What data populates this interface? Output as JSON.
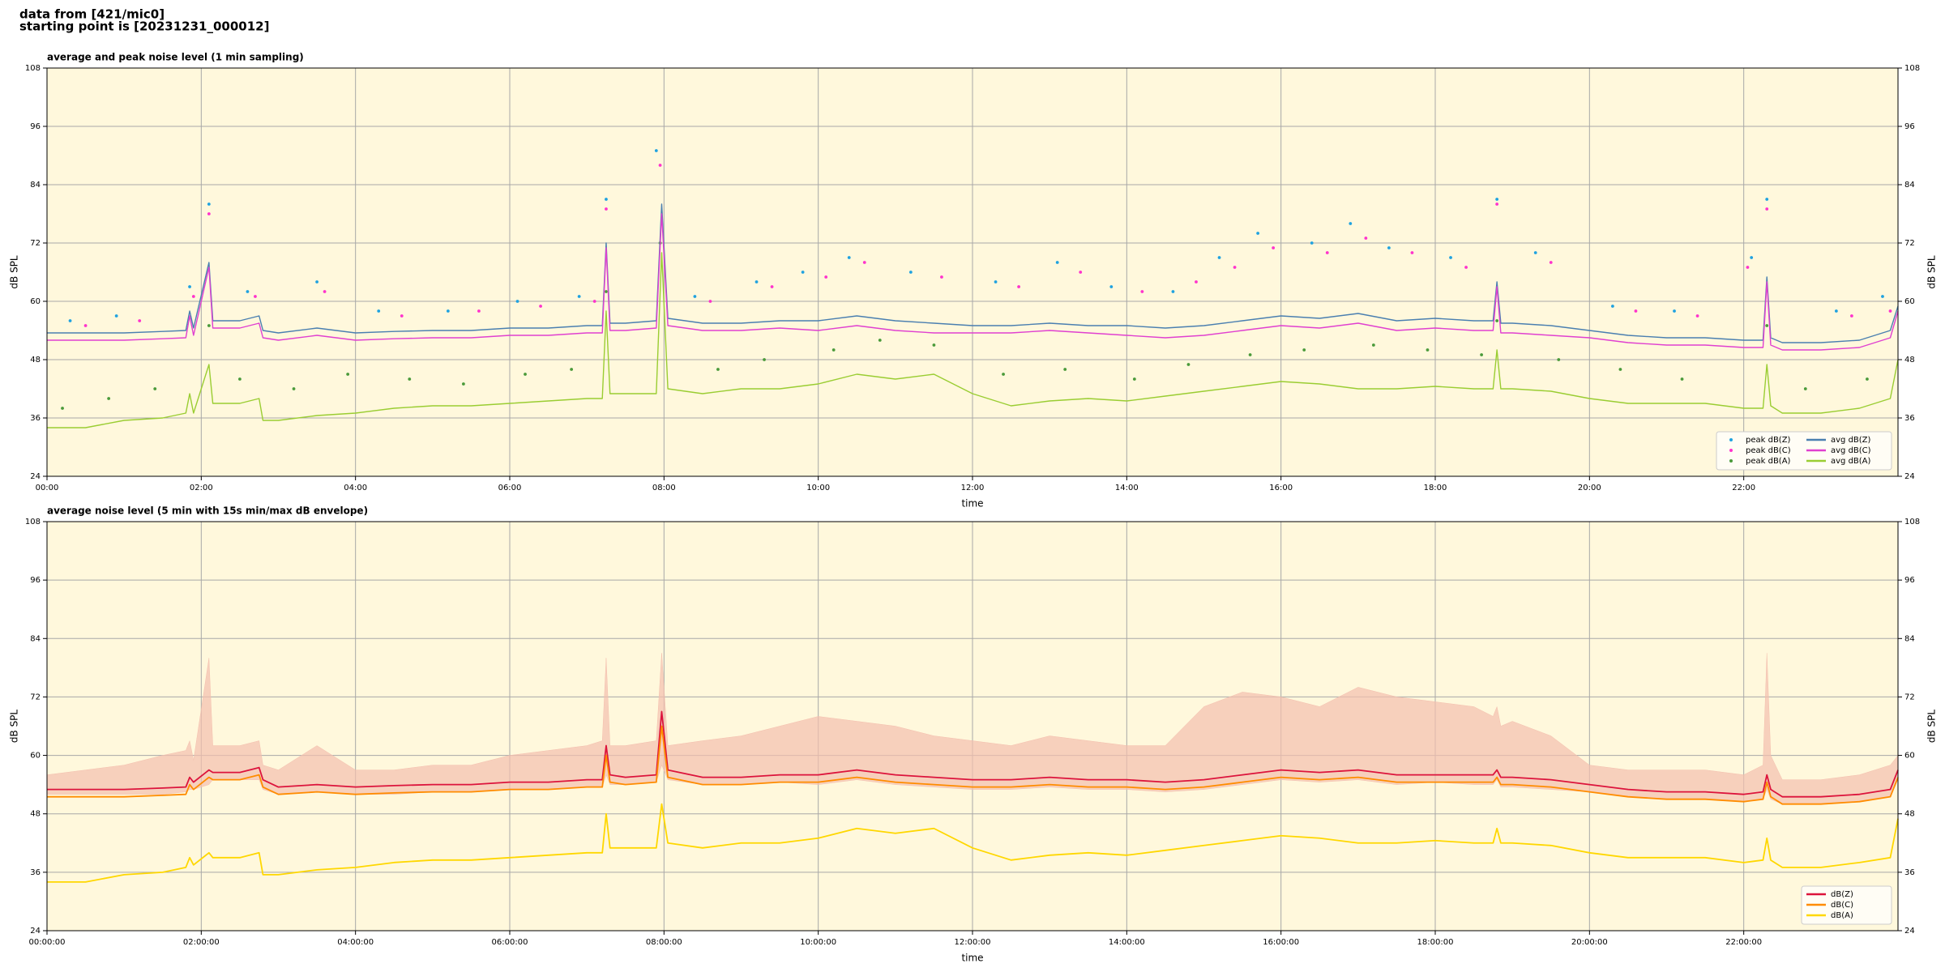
{
  "header": {
    "line1": "data from [421/mic0]",
    "line2": "starting point is [20231231_000012]"
  },
  "chart_data": [
    {
      "type": "line",
      "title": "average and peak noise level (1 min sampling)",
      "xlabel": "time",
      "ylabel": "dB SPL",
      "facecolor": "#fff8dc",
      "grid": true,
      "legend": "lower right",
      "xlim": [
        0,
        24
      ],
      "xticks": [
        {
          "value": 0,
          "label": "00:00"
        },
        {
          "value": 2,
          "label": "02:00"
        },
        {
          "value": 4,
          "label": "04:00"
        },
        {
          "value": 6,
          "label": "06:00"
        },
        {
          "value": 8,
          "label": "08:00"
        },
        {
          "value": 10,
          "label": "10:00"
        },
        {
          "value": 12,
          "label": "12:00"
        },
        {
          "value": 14,
          "label": "14:00"
        },
        {
          "value": 16,
          "label": "16:00"
        },
        {
          "value": 18,
          "label": "18:00"
        },
        {
          "value": 20,
          "label": "20:00"
        },
        {
          "value": 22,
          "label": "22:00"
        }
      ],
      "ylim": [
        24,
        108
      ],
      "yticks": [
        24,
        36,
        48,
        60,
        72,
        84,
        96,
        108
      ],
      "x": [
        0,
        0.5,
        1,
        1.5,
        1.8,
        1.85,
        1.9,
        2.1,
        2.15,
        2.5,
        2.75,
        2.8,
        3,
        3.5,
        4,
        4.5,
        5,
        5.5,
        6,
        6.5,
        7,
        7.2,
        7.25,
        7.3,
        7.5,
        7.9,
        7.97,
        8.05,
        8.5,
        9,
        9.5,
        10,
        10.5,
        11,
        11.5,
        12,
        12.5,
        13,
        13.5,
        14,
        14.5,
        15,
        15.5,
        16,
        16.5,
        17,
        17.5,
        18,
        18.5,
        18.75,
        18.8,
        18.85,
        19,
        19.5,
        20,
        20.5,
        21,
        21.5,
        22,
        22.25,
        22.3,
        22.35,
        22.5,
        23,
        23.5,
        23.9,
        24
      ],
      "series": [
        {
          "name": "peak dB(Z)",
          "type": "scatter",
          "color": "#1fa2e0",
          "x": [
            0.3,
            0.9,
            1.85,
            2.1,
            2.6,
            3.5,
            4.3,
            5.2,
            6.1,
            6.9,
            7.25,
            7.9,
            8.4,
            9.2,
            9.8,
            10.4,
            11.2,
            12.3,
            13.1,
            13.8,
            14.6,
            15.2,
            15.7,
            16.4,
            16.9,
            17.4,
            18.2,
            18.8,
            19.3,
            20.3,
            21.1,
            22.1,
            22.3,
            23.2,
            23.8
          ],
          "values": [
            56,
            57,
            63,
            80,
            62,
            64,
            58,
            58,
            60,
            61,
            81,
            91,
            61,
            64,
            66,
            69,
            66,
            64,
            68,
            63,
            62,
            69,
            74,
            72,
            76,
            71,
            69,
            81,
            70,
            59,
            58,
            69,
            81,
            58,
            61
          ]
        },
        {
          "name": "peak dB(C)",
          "type": "scatter",
          "color": "#ff33cc",
          "x": [
            0.5,
            1.2,
            1.9,
            2.1,
            2.7,
            3.6,
            4.6,
            5.6,
            6.4,
            7.1,
            7.25,
            7.95,
            8.6,
            9.4,
            10.1,
            10.6,
            11.6,
            12.6,
            13.4,
            14.2,
            14.9,
            15.4,
            15.9,
            16.6,
            17.1,
            17.7,
            18.4,
            18.8,
            19.5,
            20.6,
            21.4,
            22.05,
            22.3,
            23.4,
            23.9
          ],
          "values": [
            55,
            56,
            61,
            78,
            61,
            62,
            57,
            58,
            59,
            60,
            79,
            88,
            60,
            63,
            65,
            68,
            65,
            63,
            66,
            62,
            64,
            67,
            71,
            70,
            73,
            70,
            67,
            80,
            68,
            58,
            57,
            67,
            79,
            57,
            58
          ]
        },
        {
          "name": "peak dB(A)",
          "type": "scatter",
          "color": "#4a9a3a",
          "x": [
            0.2,
            0.8,
            1.4,
            2.1,
            2.5,
            3.2,
            3.9,
            4.7,
            5.4,
            6.2,
            6.8,
            7.25,
            7.95,
            8.7,
            9.3,
            10.2,
            10.8,
            11.5,
            12.4,
            13.2,
            14.1,
            14.8,
            15.6,
            16.3,
            17.2,
            17.9,
            18.6,
            18.8,
            19.6,
            20.4,
            21.2,
            22.3,
            22.8,
            23.6
          ],
          "values": [
            38,
            40,
            42,
            55,
            44,
            42,
            45,
            44,
            43,
            45,
            46,
            62,
            72,
            46,
            48,
            50,
            52,
            51,
            45,
            46,
            44,
            47,
            49,
            50,
            51,
            50,
            49,
            56,
            48,
            46,
            44,
            55,
            42,
            44
          ]
        },
        {
          "name": "avg dB(Z)",
          "color": "#4a7fb0",
          "values": [
            53.5,
            53.5,
            53.5,
            53.8,
            54,
            58,
            54.5,
            68,
            56,
            56,
            57,
            54,
            53.5,
            54.5,
            53.5,
            53.8,
            54,
            54,
            54.5,
            54.5,
            55,
            55,
            72,
            55.5,
            55.5,
            56,
            80,
            56.5,
            55.5,
            55.5,
            56,
            56,
            57,
            56,
            55.5,
            55,
            55,
            55.5,
            55,
            55,
            54.5,
            55,
            56,
            57,
            56.5,
            57.5,
            56,
            56.5,
            56,
            56,
            64,
            55.5,
            55.5,
            55,
            54,
            53,
            52.5,
            52.5,
            52,
            52,
            65,
            52.5,
            51.5,
            51.5,
            52,
            54,
            59
          ]
        },
        {
          "name": "avg dB(C)",
          "color": "#e040d0",
          "values": [
            52,
            52,
            52,
            52.3,
            52.5,
            57,
            53,
            67,
            54.5,
            54.5,
            55.5,
            52.5,
            52,
            53,
            52,
            52.3,
            52.5,
            52.5,
            53,
            53,
            53.5,
            53.5,
            71,
            54,
            54,
            54.5,
            78,
            55,
            54,
            54,
            54.5,
            54,
            55,
            54,
            53.5,
            53.5,
            53.5,
            54,
            53.5,
            53,
            52.5,
            53,
            54,
            55,
            54.5,
            55.5,
            54,
            54.5,
            54,
            54,
            63,
            53.5,
            53.5,
            53,
            52.5,
            51.5,
            51,
            51,
            50.5,
            50.5,
            64,
            51,
            50,
            50,
            50.5,
            52.5,
            58
          ]
        },
        {
          "name": "avg dB(A)",
          "color": "#9acd32",
          "values": [
            34,
            34,
            35.5,
            36,
            37,
            41,
            37,
            47,
            39,
            39,
            40,
            35.5,
            35.5,
            36.5,
            37,
            38,
            38.5,
            38.5,
            39,
            39.5,
            40,
            40,
            58,
            41,
            41,
            41,
            70,
            42,
            41,
            42,
            42,
            43,
            45,
            44,
            45,
            41,
            38.5,
            39.5,
            40,
            39.5,
            40.5,
            41.5,
            42.5,
            43.5,
            43,
            42,
            42,
            42.5,
            42,
            42,
            50,
            42,
            42,
            41.5,
            40,
            39,
            39,
            39,
            38,
            38,
            47,
            38.5,
            37,
            37,
            38,
            40,
            48
          ]
        }
      ]
    },
    {
      "type": "line",
      "title": "average noise level (5 min with 15s min/max dB envelope)",
      "xlabel": "time",
      "ylabel": "dB SPL",
      "facecolor": "#fff8dc",
      "grid": true,
      "legend": "lower right",
      "xlim": [
        0,
        24
      ],
      "xticks": [
        {
          "value": 0,
          "label": "00:00:00"
        },
        {
          "value": 2,
          "label": "02:00:00"
        },
        {
          "value": 4,
          "label": "04:00:00"
        },
        {
          "value": 6,
          "label": "06:00:00"
        },
        {
          "value": 8,
          "label": "08:00:00"
        },
        {
          "value": 10,
          "label": "10:00:00"
        },
        {
          "value": 12,
          "label": "12:00:00"
        },
        {
          "value": 14,
          "label": "14:00:00"
        },
        {
          "value": 16,
          "label": "16:00:00"
        },
        {
          "value": 18,
          "label": "18:00:00"
        },
        {
          "value": 20,
          "label": "20:00:00"
        },
        {
          "value": 22,
          "label": "22:00:00"
        }
      ],
      "ylim": [
        24,
        108
      ],
      "yticks": [
        24,
        36,
        48,
        60,
        72,
        84,
        96,
        108
      ],
      "x": [
        0,
        0.5,
        1,
        1.5,
        1.8,
        1.85,
        1.9,
        2.1,
        2.15,
        2.5,
        2.75,
        2.8,
        3,
        3.5,
        4,
        4.5,
        5,
        5.5,
        6,
        6.5,
        7,
        7.2,
        7.25,
        7.3,
        7.5,
        7.9,
        7.97,
        8.05,
        8.5,
        9,
        9.5,
        10,
        10.5,
        11,
        11.5,
        12,
        12.5,
        13,
        13.5,
        14,
        14.5,
        15,
        15.5,
        16,
        16.5,
        17,
        17.5,
        18,
        18.5,
        18.75,
        18.8,
        18.85,
        19,
        19.5,
        20,
        20.5,
        21,
        21.5,
        22,
        22.25,
        22.3,
        22.35,
        22.5,
        23,
        23.5,
        23.9,
        24
      ],
      "envelope": {
        "color": "#f4bfae",
        "upper": [
          56,
          57,
          58,
          60,
          61,
          63,
          59,
          80,
          62,
          62,
          63,
          58,
          57,
          62,
          57,
          57,
          58,
          58,
          60,
          61,
          62,
          63,
          80,
          62,
          62,
          63,
          81,
          62,
          63,
          64,
          66,
          68,
          67,
          66,
          64,
          63,
          62,
          64,
          63,
          62,
          62,
          70,
          73,
          72,
          70,
          74,
          72,
          71,
          70,
          68,
          70,
          66,
          67,
          64,
          58,
          57,
          57,
          57,
          56,
          58,
          81,
          60,
          55,
          55,
          56,
          58,
          60
        ],
        "lower": [
          52,
          52,
          52,
          52,
          52.5,
          53,
          53,
          54,
          55,
          55,
          55,
          53,
          52,
          52.5,
          52,
          52,
          52.5,
          52.5,
          53,
          53,
          53.5,
          53.5,
          56,
          54,
          54,
          54.5,
          58,
          55,
          54,
          54,
          54.5,
          54,
          55,
          54,
          53.5,
          53,
          53,
          53.5,
          53,
          53,
          52.5,
          53,
          54,
          55,
          54.5,
          55,
          54,
          54.5,
          54,
          54,
          55,
          53.5,
          53.5,
          53,
          52.5,
          51.5,
          51,
          51,
          50.5,
          51,
          53,
          51,
          50,
          50,
          50.5,
          51.5,
          55
        ]
      },
      "series": [
        {
          "name": "dB(Z)",
          "color": "#dc143c",
          "values": [
            53,
            53,
            53,
            53.3,
            53.5,
            55.5,
            54.5,
            57,
            56.5,
            56.5,
            57.5,
            55,
            53.5,
            54,
            53.5,
            53.8,
            54,
            54,
            54.5,
            54.5,
            55,
            55,
            62,
            56,
            55.5,
            56,
            69,
            57,
            55.5,
            55.5,
            56,
            56,
            57,
            56,
            55.5,
            55,
            55,
            55.5,
            55,
            55,
            54.5,
            55,
            56,
            57,
            56.5,
            57,
            56,
            56,
            56,
            56,
            57,
            55.5,
            55.5,
            55,
            54,
            53,
            52.5,
            52.5,
            52,
            52.5,
            56,
            53,
            51.5,
            51.5,
            52,
            53,
            57
          ]
        },
        {
          "name": "dB(C)",
          "color": "#ff8c00",
          "values": [
            51.5,
            51.5,
            51.5,
            51.8,
            52,
            54,
            53,
            55.5,
            55,
            55,
            56,
            53.5,
            52,
            52.5,
            52,
            52.3,
            52.5,
            52.5,
            53,
            53,
            53.5,
            53.5,
            60,
            54.5,
            54,
            54.5,
            66,
            55.5,
            54,
            54,
            54.5,
            54.5,
            55.5,
            54.5,
            54,
            53.5,
            53.5,
            54,
            53.5,
            53.5,
            53,
            53.5,
            54.5,
            55.5,
            55,
            55.5,
            54.5,
            54.5,
            54.5,
            54.5,
            55.5,
            54,
            54,
            53.5,
            52.5,
            51.5,
            51,
            51,
            50.5,
            51,
            54.5,
            51.5,
            50,
            50,
            50.5,
            51.5,
            55.5
          ]
        },
        {
          "name": "dB(A)",
          "color": "#ffd700",
          "values": [
            34,
            34,
            35.5,
            36,
            37,
            39,
            37.5,
            40,
            39,
            39,
            40,
            35.5,
            35.5,
            36.5,
            37,
            38,
            38.5,
            38.5,
            39,
            39.5,
            40,
            40,
            48,
            41,
            41,
            41,
            50,
            42,
            41,
            42,
            42,
            43,
            45,
            44,
            45,
            41,
            38.5,
            39.5,
            40,
            39.5,
            40.5,
            41.5,
            42.5,
            43.5,
            43,
            42,
            42,
            42.5,
            42,
            42,
            45,
            42,
            42,
            41.5,
            40,
            39,
            39,
            39,
            38,
            38.5,
            43,
            38.5,
            37,
            37,
            38,
            39,
            47
          ]
        }
      ]
    }
  ]
}
